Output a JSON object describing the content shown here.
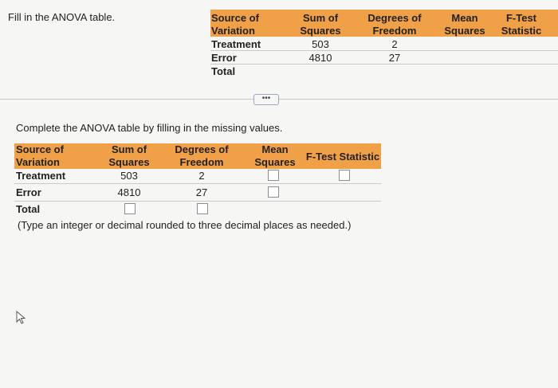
{
  "instruction": "Fill in the ANOVA table.",
  "top_table": {
    "headers": {
      "source": [
        "Source of",
        "Variation"
      ],
      "ss": [
        "Sum of",
        "Squares"
      ],
      "df": [
        "Degrees of",
        "Freedom"
      ],
      "ms": [
        "Mean",
        "Squares"
      ],
      "f": [
        "F-Test",
        "Statistic"
      ]
    },
    "rows": [
      {
        "label": "Treatment",
        "ss": "503",
        "df": "2"
      },
      {
        "label": "Error",
        "ss": "4810",
        "df": "27"
      },
      {
        "label": "Total",
        "ss": "",
        "df": ""
      }
    ]
  },
  "complete_instruction": "Complete the ANOVA table by filling in the missing values.",
  "bottom_table": {
    "headers": {
      "source": [
        "Source of",
        "Variation"
      ],
      "ss": [
        "Sum of",
        "Squares"
      ],
      "df": [
        "Degrees of",
        "Freedom"
      ],
      "ms": [
        "Mean",
        "Squares"
      ],
      "f": "F-Test Statistic"
    },
    "rows": [
      {
        "label": "Treatment",
        "ss": "503",
        "df": "2"
      },
      {
        "label": "Error",
        "ss": "4810",
        "df": "27"
      },
      {
        "label": "Total",
        "ss": "",
        "df": ""
      }
    ]
  },
  "note": "(Type an integer or decimal rounded to three decimal places as needed.)",
  "divider_handle": "•••",
  "colors": {
    "header_orange": "#f0a046",
    "background": "#f6f6f4"
  }
}
